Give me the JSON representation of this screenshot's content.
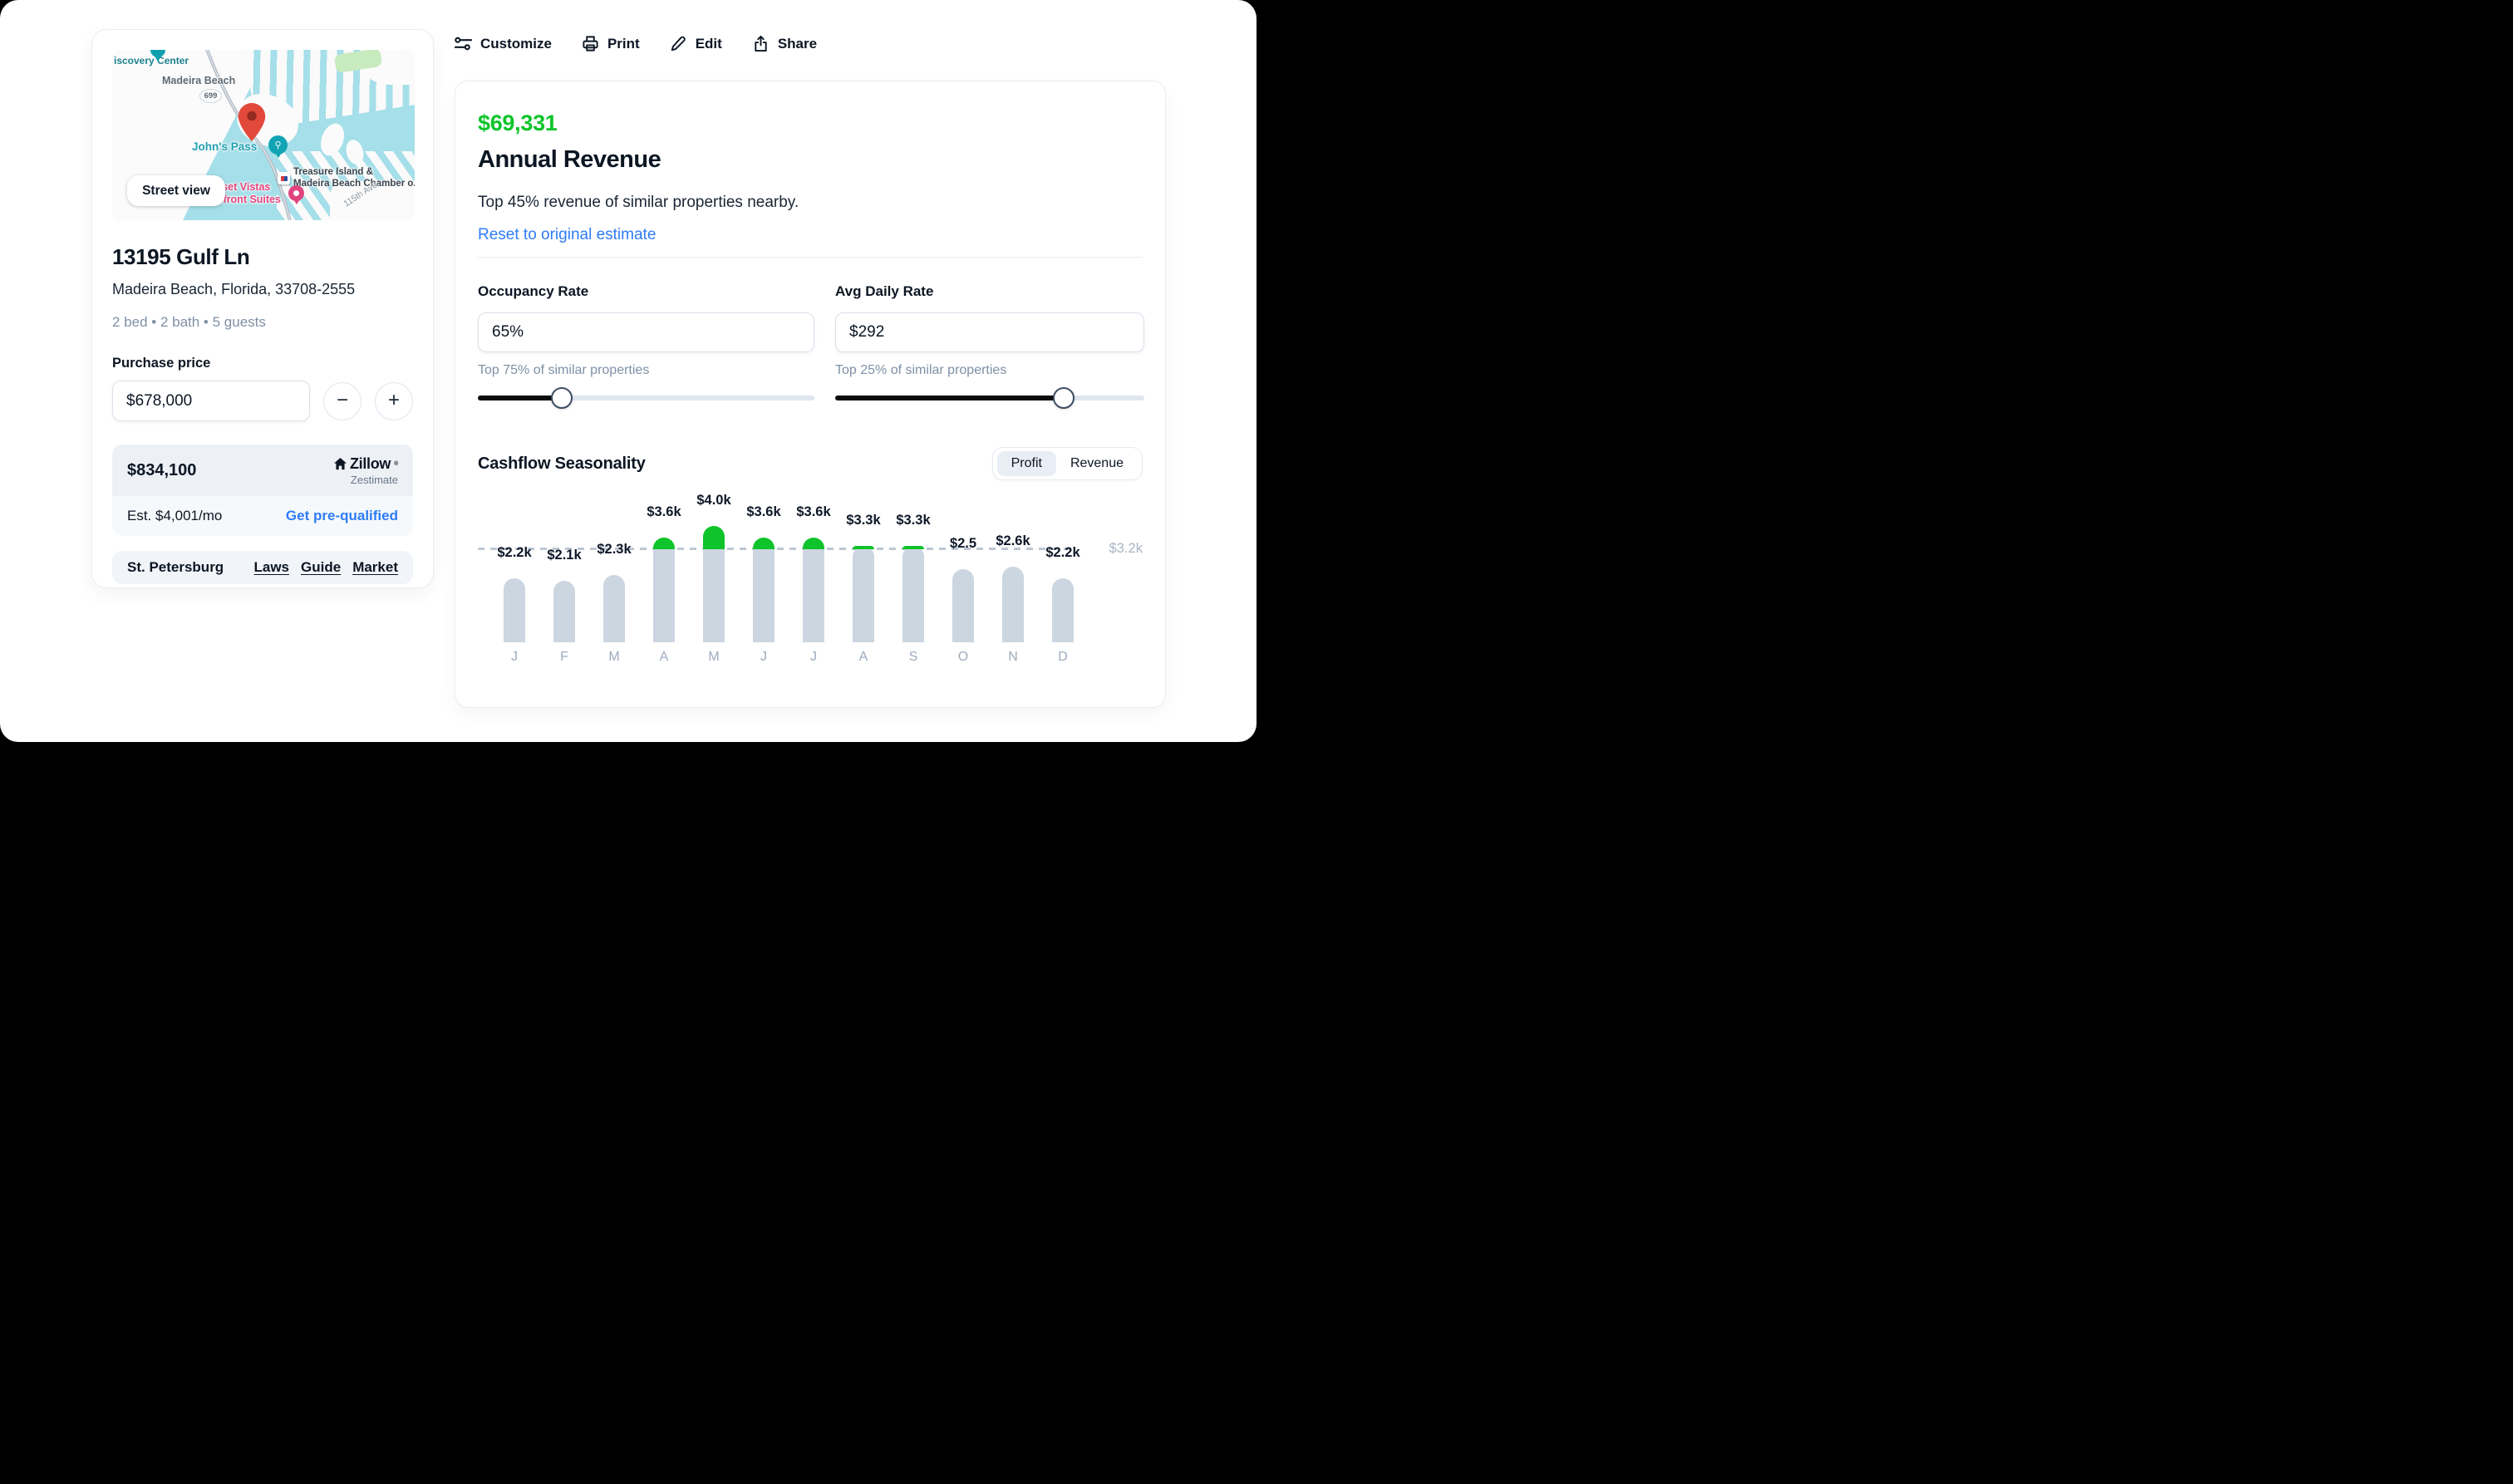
{
  "toolbar": {
    "items": [
      {
        "icon": "sliders-icon",
        "label": "Customize"
      },
      {
        "icon": "printer-icon",
        "label": "Print"
      },
      {
        "icon": "pencil-icon",
        "label": "Edit"
      },
      {
        "icon": "share-icon",
        "label": "Share"
      }
    ]
  },
  "property_card": {
    "map": {
      "street_view_label": "Street view",
      "labels": {
        "discovery_center": "iscovery Center",
        "madeira_beach": "Madeira Beach",
        "route_shield": "699",
        "johns_pass": "John's Pass",
        "chamber_line1": "Treasure Island &",
        "chamber_line2": "Madeira Beach Chamber o...",
        "sunset_line1": "Sunset Vistas",
        "sunset_line2": "Beachfront Suites",
        "street": "115th Ave"
      }
    },
    "address": "13195 Gulf Ln",
    "city_line": "Madeira Beach, Florida, 33708-2555",
    "specs": "2 bed • 2 bath • 5 guests",
    "purchase_price": {
      "label": "Purchase price",
      "value": "$678,000",
      "decrement": "−",
      "increment": "+"
    },
    "zestimate": {
      "value": "$834,100",
      "brand": "Zillow",
      "registered": "®",
      "caption": "Zestimate"
    },
    "mortgage": {
      "estimate": "Est. $4,001/mo",
      "link": "Get pre-qualified"
    },
    "market_row": {
      "city": "St. Petersburg",
      "links": [
        "Laws",
        "Guide",
        "Market"
      ]
    }
  },
  "revenue_panel": {
    "amount": "$69,331",
    "title": "Annual Revenue",
    "subtitle": "Top 45% revenue of similar properties nearby.",
    "reset_link": "Reset to original estimate",
    "occupancy": {
      "label": "Occupancy Rate",
      "value": "65%",
      "caption": "Top 75% of similar properties",
      "slider_percent": 25
    },
    "adr": {
      "label": "Avg Daily Rate",
      "value": "$292",
      "caption": "Top 25% of similar properties",
      "slider_percent": 74
    },
    "seasonality": {
      "title": "Cashflow Seasonality",
      "toggle": {
        "options": [
          "Profit",
          "Revenue"
        ],
        "selected": "Profit"
      }
    }
  },
  "chart_data": {
    "type": "bar",
    "title": "Cashflow Seasonality",
    "categories": [
      "J",
      "F",
      "M",
      "A",
      "M",
      "J",
      "J",
      "A",
      "S",
      "O",
      "N",
      "D"
    ],
    "values": [
      2.2,
      2.1,
      2.3,
      3.6,
      4.0,
      3.6,
      3.6,
      3.3,
      3.3,
      2.5,
      2.6,
      2.2
    ],
    "labels": [
      "$2.2k",
      "$2.1k",
      "$2.3k",
      "$3.6k",
      "$4.0k",
      "$3.6k",
      "$3.6k",
      "$3.3k",
      "$3.3k",
      "$2.5",
      "$2.6k",
      "$2.2k"
    ],
    "threshold": {
      "value": 3.2,
      "label": "$3.2k"
    },
    "unit": "USD thousands per month",
    "ylim": [
      0,
      4.5
    ],
    "legend": "none",
    "grid": "threshold-dash-only",
    "colors": {
      "bar": "#ccd6e1",
      "above_threshold": "#0ec42a",
      "dash": "#bcc7d4"
    }
  },
  "colors": {
    "accent_green": "#0ec42a",
    "link_blue": "#2e7cf6",
    "map_water": "#a5dfe9",
    "pin_red": "#e2493b"
  }
}
